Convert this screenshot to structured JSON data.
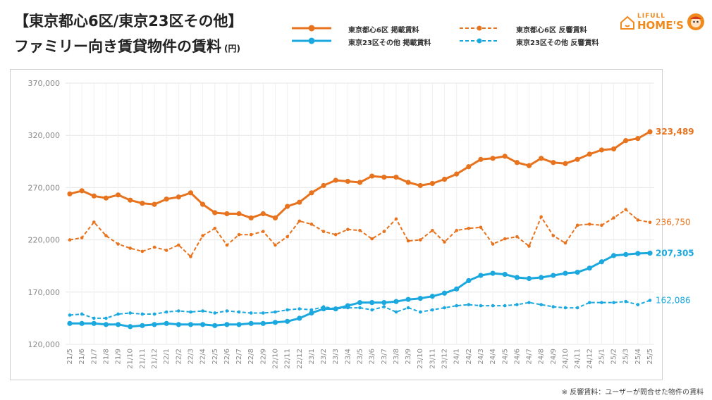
{
  "header": {
    "title_line1": "【東京都心6区/東京23区その他】",
    "title_line2": "ファミリー向き賃貸物件の賃料",
    "unit": "(円)"
  },
  "logo": {
    "line1": "LIFULL",
    "line2": "HOME'S"
  },
  "footnote": "※ 反響賃料：ユーザーが問合せた物件の賃料",
  "colors": {
    "orange": "#e8731e",
    "blue": "#1aa8df",
    "grid": "#e6e6e6"
  },
  "chart_data": {
    "type": "line",
    "ylim": [
      120000,
      370000
    ],
    "yticks": [
      "120,000",
      "170,000",
      "220,000",
      "270,000",
      "320,000",
      "370,000"
    ],
    "ytick_values": [
      120000,
      170000,
      220000,
      270000,
      320000,
      370000
    ],
    "grid": true,
    "legend_position": "top",
    "categories": [
      "21/5",
      "21/6",
      "21/7",
      "21/8",
      "21/9",
      "21/10",
      "21/11",
      "21/12",
      "22/1",
      "22/2",
      "22/3",
      "22/4",
      "22/5",
      "22/6",
      "22/7",
      "22/8",
      "22/9",
      "22/10",
      "22/11",
      "22/12",
      "23/1",
      "23/2",
      "23/3",
      "23/4",
      "23/5",
      "23/6",
      "23/7",
      "23/8",
      "23/9",
      "23/10",
      "23/11",
      "23/12",
      "24/1",
      "24/2",
      "24/3",
      "24/4",
      "24/5",
      "24/6",
      "24/7",
      "24/8",
      "24/9",
      "24/10",
      "24/11",
      "24/12",
      "25/1",
      "25/2",
      "25/3",
      "25/4",
      "25/5"
    ],
    "series": [
      {
        "name": "東京都心6区 掲載賃料",
        "color": "#e8731e",
        "style": "solid",
        "end_label": "323,489",
        "values": [
          264000,
          267000,
          262000,
          260000,
          263000,
          258000,
          255000,
          254000,
          259000,
          261000,
          265000,
          254000,
          246000,
          245000,
          245000,
          241000,
          245000,
          241000,
          252000,
          256000,
          265000,
          272000,
          277000,
          276000,
          275000,
          281000,
          280000,
          280000,
          275000,
          272000,
          274000,
          278000,
          283000,
          290000,
          297000,
          298000,
          300000,
          294000,
          291000,
          298000,
          294000,
          293000,
          297000,
          302000,
          306000,
          307000,
          315000,
          317000,
          323489
        ]
      },
      {
        "name": "東京都心6区 反響賃料",
        "color": "#e8731e",
        "style": "dashed",
        "end_label": "236,750",
        "values": [
          220000,
          222000,
          237000,
          224000,
          216000,
          212000,
          209000,
          213000,
          210000,
          215000,
          204000,
          224000,
          231000,
          215000,
          225000,
          225000,
          228000,
          215000,
          223000,
          238000,
          235000,
          228000,
          225000,
          230000,
          229000,
          221000,
          228000,
          240000,
          219000,
          220000,
          229000,
          218000,
          229000,
          231000,
          232000,
          216000,
          221000,
          223000,
          214000,
          242000,
          224000,
          217000,
          234000,
          235000,
          234000,
          241000,
          249000,
          239000,
          236750
        ]
      },
      {
        "name": "東京23区その他 掲載賃料",
        "color": "#1aa8df",
        "style": "solid",
        "end_label": "207,305",
        "values": [
          140000,
          140000,
          140000,
          139000,
          139000,
          137000,
          138000,
          139000,
          140000,
          139000,
          139000,
          139000,
          138000,
          139000,
          139000,
          140000,
          140000,
          141000,
          142000,
          145000,
          150000,
          154000,
          154000,
          157000,
          160000,
          160000,
          160000,
          161000,
          163000,
          164000,
          166000,
          169000,
          173000,
          181000,
          186000,
          188000,
          187000,
          184000,
          183000,
          184000,
          186000,
          188000,
          189000,
          193000,
          199000,
          205000,
          206000,
          207000,
          207305
        ]
      },
      {
        "name": "東京23区その他 反響賃料",
        "color": "#1aa8df",
        "style": "dashed",
        "end_label": "162,086",
        "values": [
          148000,
          149000,
          145000,
          145000,
          149000,
          150000,
          149000,
          149000,
          151000,
          152000,
          151000,
          152000,
          150000,
          152000,
          151000,
          150000,
          150000,
          151000,
          153000,
          154000,
          153000,
          156000,
          154000,
          155000,
          155000,
          153000,
          156000,
          151000,
          155000,
          151000,
          153000,
          155000,
          157000,
          158000,
          157000,
          157000,
          157000,
          158000,
          160000,
          158000,
          156000,
          155000,
          155000,
          160000,
          160000,
          160000,
          161000,
          158000,
          162086
        ]
      }
    ]
  }
}
